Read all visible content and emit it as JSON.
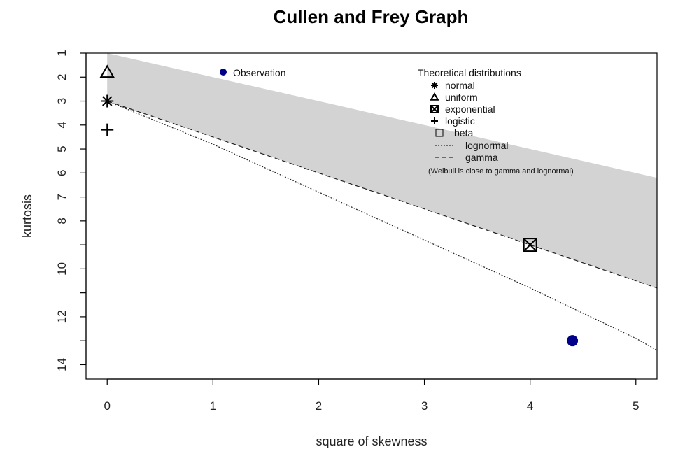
{
  "chart_data": {
    "type": "scatter",
    "title": "Cullen and Frey Graph",
    "xlabel": "square of skewness",
    "ylabel": "kurtosis",
    "xlim": [
      -0.2,
      5.2
    ],
    "ylim": [
      1,
      14.6
    ],
    "y_reversed": true,
    "xticks": [
      0,
      1,
      2,
      3,
      4,
      5
    ],
    "yticks": [
      1,
      2,
      3,
      4,
      5,
      6,
      7,
      8,
      9,
      10,
      11,
      12,
      13,
      14
    ],
    "ytick_labels": [
      "1",
      "2",
      "3",
      "4",
      "5",
      "6",
      "7",
      "8",
      "",
      "10",
      "",
      "12",
      "",
      "14"
    ],
    "grid": false,
    "observation": {
      "label": "Observation",
      "x": 4.4,
      "y": 13,
      "color": "#00008b"
    },
    "legend": {
      "title": "Theoretical distributions",
      "entries": [
        {
          "symbol": "asterisk",
          "label": "normal"
        },
        {
          "symbol": "triangle",
          "label": "uniform"
        },
        {
          "symbol": "boxed-x",
          "label": "exponential"
        },
        {
          "symbol": "plus",
          "label": "logistic"
        },
        {
          "symbol": "grey-square",
          "label": "beta"
        },
        {
          "symbol": "dotted-line",
          "label": "lognormal"
        },
        {
          "symbol": "dashed-line",
          "label": "gamma"
        }
      ],
      "note": "(Weibull is close to gamma and lognormal)"
    },
    "points": [
      {
        "name": "normal",
        "x": 0,
        "y": 3,
        "symbol": "asterisk"
      },
      {
        "name": "uniform",
        "x": 0,
        "y": 1.8,
        "symbol": "triangle"
      },
      {
        "name": "exponential",
        "x": 4,
        "y": 9,
        "symbol": "boxed-x"
      },
      {
        "name": "logistic",
        "x": 0,
        "y": 4.2,
        "symbol": "plus"
      }
    ],
    "beta_region": {
      "upper": {
        "x": [
          0,
          5.2
        ],
        "y": [
          1,
          6.2
        ]
      },
      "lower": {
        "x": [
          0,
          5.2
        ],
        "y": [
          3,
          10.8
        ]
      },
      "color": "#d3d3d3"
    },
    "gamma_line": {
      "x": [
        0,
        5.2
      ],
      "y": [
        3,
        10.8
      ]
    },
    "lognormal_line": {
      "x": [
        0,
        1,
        2,
        3,
        4,
        5,
        5.2
      ],
      "y": [
        3,
        4.8,
        6.8,
        8.8,
        10.8,
        12.9,
        13.4
      ]
    }
  }
}
